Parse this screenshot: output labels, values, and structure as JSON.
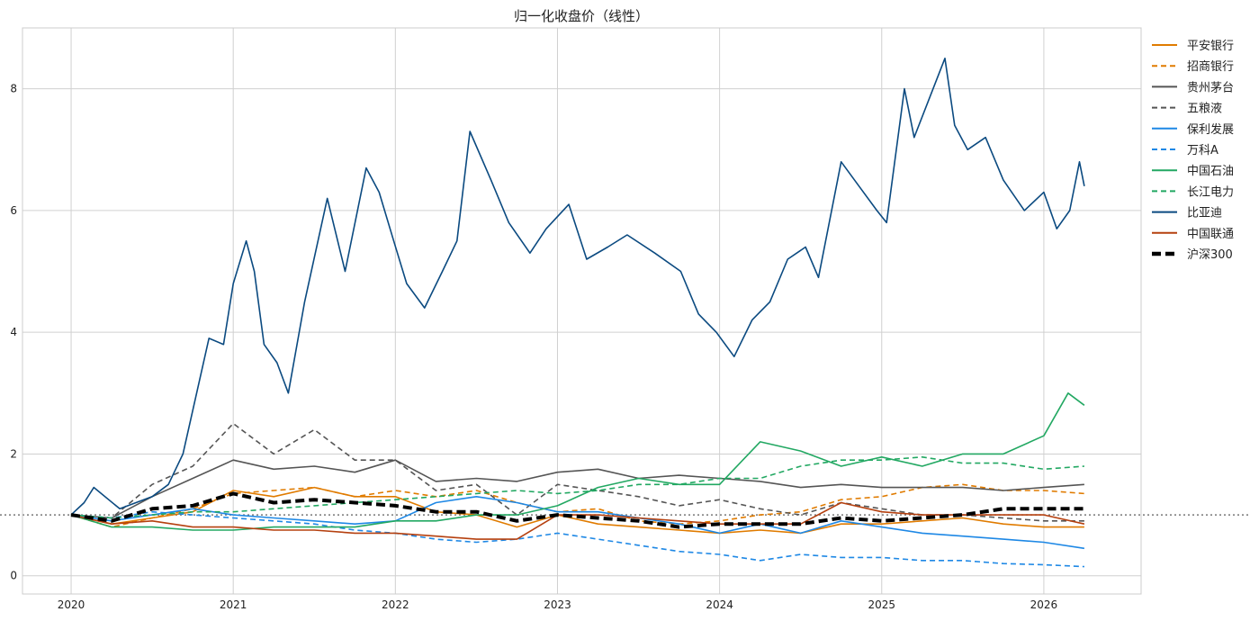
{
  "chart_data": {
    "type": "line",
    "title": "归一化收盘价（线性）",
    "xlabel": "",
    "ylabel": "",
    "xlim": [
      2019.7,
      2026.6
    ],
    "ylim": [
      -0.3,
      9.0
    ],
    "xticks": [
      "2020",
      "2021",
      "2022",
      "2023",
      "2024",
      "2025",
      "2026"
    ],
    "yticks": [
      0,
      2,
      4,
      6,
      8
    ],
    "grid": true,
    "legend_position": "outside-right-top",
    "reference_line": {
      "y": 1,
      "style": "dotted",
      "color": "#777777"
    },
    "series": [
      {
        "name": "平安银行",
        "color": "#e07b00",
        "dash": "solid",
        "x": [
          2020,
          2020.25,
          2020.5,
          2020.75,
          2021,
          2021.25,
          2021.5,
          2021.75,
          2022,
          2022.25,
          2022.5,
          2022.75,
          2023,
          2023.25,
          2023.5,
          2023.75,
          2024,
          2024.25,
          2024.5,
          2024.75,
          2025,
          2025.25,
          2025.5,
          2025.75,
          2026,
          2026.25
        ],
        "y": [
          1.0,
          0.85,
          0.95,
          1.05,
          1.4,
          1.3,
          1.45,
          1.3,
          1.3,
          1.05,
          1.0,
          0.8,
          1.0,
          0.85,
          0.8,
          0.75,
          0.7,
          0.75,
          0.7,
          0.85,
          0.85,
          0.9,
          0.95,
          0.85,
          0.8,
          0.8
        ]
      },
      {
        "name": "招商银行",
        "color": "#e07b00",
        "dash": "dashed",
        "x": [
          2020,
          2020.25,
          2020.5,
          2020.75,
          2021,
          2021.25,
          2021.5,
          2021.75,
          2022,
          2022.25,
          2022.5,
          2022.75,
          2023,
          2023.25,
          2023.5,
          2023.75,
          2024,
          2024.25,
          2024.5,
          2024.75,
          2025,
          2025.25,
          2025.5,
          2025.75,
          2026,
          2026.25
        ],
        "y": [
          1.0,
          0.8,
          0.95,
          1.1,
          1.35,
          1.4,
          1.45,
          1.3,
          1.4,
          1.3,
          1.4,
          1.2,
          1.05,
          1.1,
          0.9,
          0.85,
          0.9,
          1.0,
          1.05,
          1.25,
          1.3,
          1.45,
          1.5,
          1.4,
          1.4,
          1.35
        ]
      },
      {
        "name": "贵州茅台",
        "color": "#555555",
        "dash": "solid",
        "x": [
          2020,
          2020.25,
          2020.5,
          2020.75,
          2021,
          2021.25,
          2021.5,
          2021.75,
          2022,
          2022.25,
          2022.5,
          2022.75,
          2023,
          2023.25,
          2023.5,
          2023.75,
          2024,
          2024.25,
          2024.5,
          2024.75,
          2025,
          2025.25,
          2025.5,
          2025.75,
          2026,
          2026.25
        ],
        "y": [
          1.0,
          0.95,
          1.3,
          1.6,
          1.9,
          1.75,
          1.8,
          1.7,
          1.9,
          1.55,
          1.6,
          1.55,
          1.7,
          1.75,
          1.6,
          1.65,
          1.6,
          1.55,
          1.45,
          1.5,
          1.45,
          1.45,
          1.45,
          1.4,
          1.45,
          1.5
        ]
      },
      {
        "name": "五粮液",
        "color": "#555555",
        "dash": "dashed",
        "x": [
          2020,
          2020.25,
          2020.5,
          2020.75,
          2021,
          2021.25,
          2021.5,
          2021.75,
          2022,
          2022.25,
          2022.5,
          2022.75,
          2023,
          2023.25,
          2023.5,
          2023.75,
          2024,
          2024.25,
          2024.5,
          2024.75,
          2025,
          2025.25,
          2025.5,
          2025.75,
          2026,
          2026.25
        ],
        "y": [
          1.0,
          0.95,
          1.5,
          1.8,
          2.5,
          2.0,
          2.4,
          1.9,
          1.9,
          1.4,
          1.5,
          1.0,
          1.5,
          1.4,
          1.3,
          1.15,
          1.25,
          1.1,
          1.0,
          1.2,
          1.1,
          1.0,
          1.0,
          0.95,
          0.9,
          0.9
        ]
      },
      {
        "name": "保利发展",
        "color": "#1e88e5",
        "dash": "solid",
        "x": [
          2020,
          2020.25,
          2020.5,
          2020.75,
          2021,
          2021.25,
          2021.5,
          2021.75,
          2022,
          2022.25,
          2022.5,
          2022.75,
          2023,
          2023.25,
          2023.5,
          2023.75,
          2024,
          2024.25,
          2024.5,
          2024.75,
          2025,
          2025.25,
          2025.5,
          2025.75,
          2026,
          2026.25
        ],
        "y": [
          1.0,
          0.9,
          1.0,
          1.1,
          1.0,
          0.95,
          0.9,
          0.85,
          0.9,
          1.2,
          1.3,
          1.2,
          1.05,
          1.05,
          0.95,
          0.85,
          0.7,
          0.85,
          0.7,
          0.9,
          0.8,
          0.7,
          0.65,
          0.6,
          0.55,
          0.45
        ]
      },
      {
        "name": "万科A",
        "color": "#1e88e5",
        "dash": "dashed",
        "x": [
          2020,
          2020.25,
          2020.5,
          2020.75,
          2021,
          2021.25,
          2021.5,
          2021.75,
          2022,
          2022.25,
          2022.5,
          2022.75,
          2023,
          2023.25,
          2023.5,
          2023.75,
          2024,
          2024.25,
          2024.5,
          2024.75,
          2025,
          2025.25,
          2025.5,
          2025.75,
          2026,
          2026.25
        ],
        "y": [
          1.0,
          0.95,
          1.05,
          1.0,
          0.95,
          0.9,
          0.85,
          0.75,
          0.7,
          0.6,
          0.55,
          0.6,
          0.7,
          0.6,
          0.5,
          0.4,
          0.35,
          0.25,
          0.35,
          0.3,
          0.3,
          0.25,
          0.25,
          0.2,
          0.18,
          0.15
        ]
      },
      {
        "name": "中国石油",
        "color": "#22a862",
        "dash": "solid",
        "x": [
          2020,
          2020.25,
          2020.5,
          2020.75,
          2021,
          2021.25,
          2021.5,
          2021.75,
          2022,
          2022.25,
          2022.5,
          2022.75,
          2023,
          2023.25,
          2023.5,
          2023.75,
          2024,
          2024.25,
          2024.5,
          2024.75,
          2025,
          2025.25,
          2025.5,
          2025.75,
          2026,
          2026.15,
          2026.25
        ],
        "y": [
          1.0,
          0.8,
          0.8,
          0.75,
          0.75,
          0.8,
          0.8,
          0.8,
          0.9,
          0.9,
          1.0,
          1.0,
          1.15,
          1.45,
          1.6,
          1.5,
          1.5,
          2.2,
          2.05,
          1.8,
          1.95,
          1.8,
          2.0,
          2.0,
          2.3,
          3.0,
          2.8
        ]
      },
      {
        "name": "长江电力",
        "color": "#22a862",
        "dash": "dashed",
        "x": [
          2020,
          2020.25,
          2020.5,
          2020.75,
          2021,
          2021.25,
          2021.5,
          2021.75,
          2022,
          2022.25,
          2022.5,
          2022.75,
          2023,
          2023.25,
          2023.5,
          2023.75,
          2024,
          2024.25,
          2024.5,
          2024.75,
          2025,
          2025.25,
          2025.5,
          2025.75,
          2026,
          2026.25
        ],
        "y": [
          1.0,
          0.95,
          1.0,
          1.05,
          1.05,
          1.1,
          1.15,
          1.2,
          1.25,
          1.3,
          1.35,
          1.4,
          1.35,
          1.4,
          1.5,
          1.5,
          1.6,
          1.6,
          1.8,
          1.9,
          1.9,
          1.95,
          1.85,
          1.85,
          1.75,
          1.8
        ]
      },
      {
        "name": "比亚迪",
        "color": "#0b4a80",
        "dash": "solid",
        "x": [
          2020,
          2020.08,
          2020.14,
          2020.3,
          2020.5,
          2020.6,
          2020.69,
          2020.85,
          2020.94,
          2021,
          2021.08,
          2021.13,
          2021.19,
          2021.27,
          2021.34,
          2021.44,
          2021.58,
          2021.69,
          2021.82,
          2021.9,
          2021.99,
          2022.07,
          2022.18,
          2022.29,
          2022.38,
          2022.46,
          2022.59,
          2022.7,
          2022.83,
          2022.93,
          2023.07,
          2023.18,
          2023.31,
          2023.43,
          2023.6,
          2023.76,
          2023.87,
          2023.98,
          2024.09,
          2024.2,
          2024.31,
          2024.42,
          2024.53,
          2024.61,
          2024.75,
          2024.86,
          2024.97,
          2025.03,
          2025.14,
          2025.2,
          2025.39,
          2025.45,
          2025.53,
          2025.64,
          2025.75,
          2025.88,
          2026.0,
          2026.08,
          2026.16,
          2026.22,
          2026.25
        ],
        "y": [
          1.0,
          1.2,
          1.45,
          1.1,
          1.3,
          1.5,
          2.0,
          3.9,
          3.8,
          4.8,
          5.5,
          5.0,
          3.8,
          3.5,
          3.0,
          4.5,
          6.2,
          5.0,
          6.7,
          6.3,
          5.5,
          4.8,
          4.4,
          5.0,
          5.5,
          7.3,
          6.5,
          5.8,
          5.3,
          5.7,
          6.1,
          5.2,
          5.4,
          5.6,
          5.3,
          5.0,
          4.3,
          4.0,
          3.6,
          4.2,
          4.5,
          5.2,
          5.4,
          4.9,
          6.8,
          6.4,
          6.0,
          5.8,
          8.0,
          7.2,
          8.5,
          7.4,
          7.0,
          7.2,
          6.5,
          6.0,
          6.3,
          5.7,
          6.0,
          6.8,
          6.4
        ]
      },
      {
        "name": "中国联通",
        "color": "#b5400f",
        "dash": "solid",
        "x": [
          2020,
          2020.25,
          2020.5,
          2020.75,
          2021,
          2021.25,
          2021.5,
          2021.75,
          2022,
          2022.25,
          2022.5,
          2022.75,
          2023,
          2023.25,
          2023.5,
          2023.75,
          2024,
          2024.25,
          2024.5,
          2024.75,
          2025,
          2025.25,
          2025.5,
          2025.75,
          2026,
          2026.25
        ],
        "y": [
          1.0,
          0.85,
          0.9,
          0.8,
          0.8,
          0.75,
          0.75,
          0.7,
          0.7,
          0.65,
          0.6,
          0.6,
          1.0,
          1.0,
          0.95,
          0.9,
          0.85,
          0.85,
          0.85,
          1.2,
          1.05,
          1.0,
          1.0,
          1.0,
          1.0,
          0.85
        ]
      },
      {
        "name": "沪深300",
        "color": "#000000",
        "dash": "thick-dashed",
        "x": [
          2020,
          2020.25,
          2020.5,
          2020.75,
          2021,
          2021.25,
          2021.5,
          2021.75,
          2022,
          2022.25,
          2022.5,
          2022.75,
          2023,
          2023.25,
          2023.5,
          2023.75,
          2024,
          2024.25,
          2024.5,
          2024.75,
          2025,
          2025.25,
          2025.5,
          2025.75,
          2026,
          2026.25
        ],
        "y": [
          1.0,
          0.9,
          1.1,
          1.15,
          1.35,
          1.2,
          1.25,
          1.2,
          1.15,
          1.05,
          1.05,
          0.9,
          1.0,
          0.95,
          0.9,
          0.8,
          0.85,
          0.85,
          0.85,
          0.95,
          0.9,
          0.95,
          1.0,
          1.1,
          1.1,
          1.1
        ]
      }
    ]
  }
}
